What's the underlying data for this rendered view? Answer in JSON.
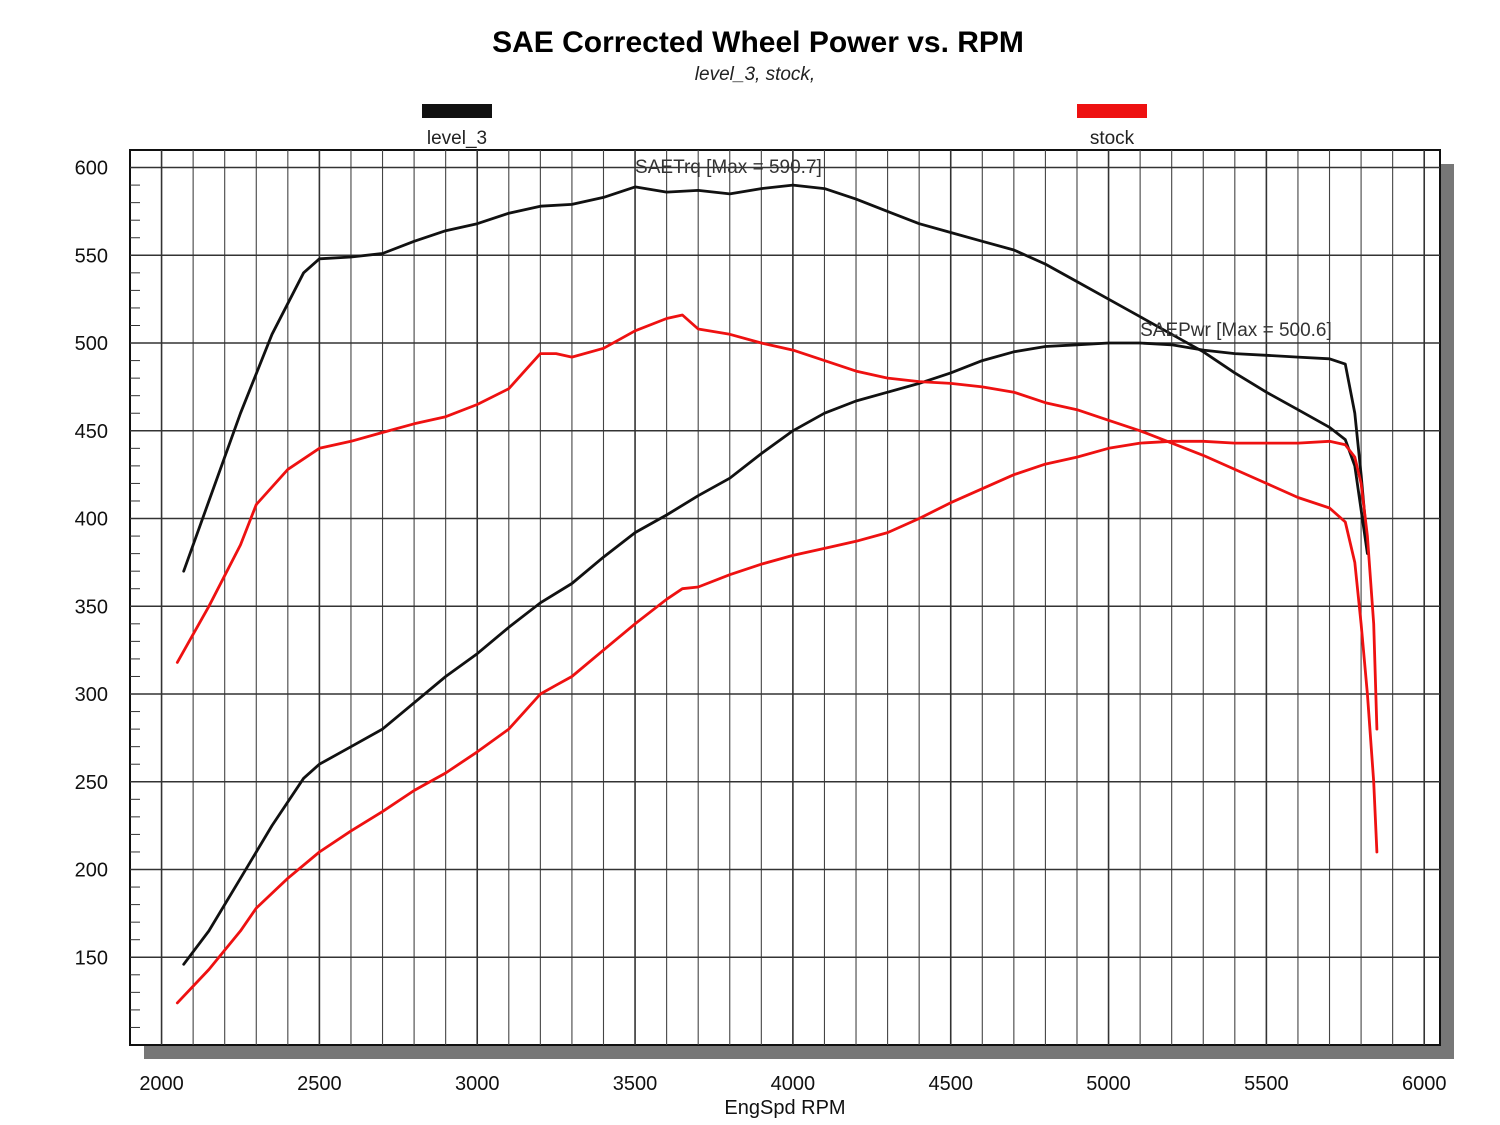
{
  "chart_data": {
    "type": "line",
    "title": "SAE Corrected Wheel Power vs. RPM",
    "subtitle": "level_3, stock,",
    "xlabel": "EngSpd RPM",
    "ylabel": "",
    "xlim": [
      1900,
      6050
    ],
    "ylim": [
      100,
      610
    ],
    "x_ticks": [
      2000,
      2500,
      3000,
      3500,
      4000,
      4500,
      5000,
      5500,
      6000
    ],
    "y_ticks": [
      150,
      200,
      250,
      300,
      350,
      400,
      450,
      500,
      550,
      600
    ],
    "grid": true,
    "legend": [
      {
        "name": "level_3",
        "color": "#111111"
      },
      {
        "name": "stock",
        "color": "#ee1111"
      }
    ],
    "annotations": [
      {
        "text": "SAETrq [Max = 590.7]",
        "x": 3500,
        "y": 597
      },
      {
        "text": "SAEPwr [Max = 500.6]",
        "x": 5100,
        "y": 504
      }
    ],
    "series": [
      {
        "name": "level_3",
        "measure": "SAETrq",
        "color": "#111111",
        "x": [
          2070,
          2150,
          2250,
          2350,
          2450,
          2500,
          2600,
          2700,
          2800,
          2900,
          3000,
          3100,
          3200,
          3300,
          3400,
          3500,
          3600,
          3700,
          3800,
          3900,
          4000,
          4100,
          4200,
          4300,
          4400,
          4500,
          4600,
          4700,
          4800,
          4900,
          5000,
          5100,
          5200,
          5300,
          5400,
          5500,
          5600,
          5700,
          5750,
          5780,
          5800,
          5820
        ],
        "y": [
          370,
          410,
          460,
          505,
          540,
          548,
          549,
          551,
          558,
          564,
          568,
          574,
          578,
          579,
          583,
          589,
          586,
          587,
          585,
          588,
          590,
          588,
          582,
          575,
          568,
          563,
          558,
          553,
          545,
          535,
          525,
          515,
          505,
          495,
          483,
          472,
          462,
          452,
          445,
          430,
          405,
          380
        ]
      },
      {
        "name": "level_3",
        "measure": "SAEPwr",
        "color": "#111111",
        "x": [
          2070,
          2150,
          2250,
          2350,
          2450,
          2500,
          2600,
          2700,
          2800,
          2900,
          3000,
          3100,
          3200,
          3300,
          3400,
          3500,
          3600,
          3700,
          3800,
          3900,
          4000,
          4100,
          4200,
          4300,
          4400,
          4500,
          4600,
          4700,
          4800,
          4900,
          5000,
          5100,
          5200,
          5300,
          5400,
          5500,
          5600,
          5700,
          5750,
          5780,
          5800,
          5820
        ],
        "y": [
          146,
          165,
          195,
          225,
          252,
          260,
          270,
          280,
          295,
          310,
          323,
          338,
          352,
          363,
          378,
          392,
          402,
          413,
          423,
          437,
          450,
          460,
          467,
          472,
          477,
          483,
          490,
          495,
          498,
          499,
          500,
          500,
          499,
          496,
          494,
          493,
          492,
          491,
          488,
          460,
          425,
          385
        ]
      },
      {
        "name": "stock",
        "measure": "SAETrq",
        "color": "#ee1111",
        "x": [
          2050,
          2150,
          2250,
          2300,
          2400,
          2500,
          2600,
          2700,
          2800,
          2900,
          3000,
          3100,
          3150,
          3200,
          3250,
          3300,
          3400,
          3500,
          3600,
          3650,
          3700,
          3800,
          3900,
          4000,
          4100,
          4200,
          4300,
          4400,
          4500,
          4600,
          4700,
          4800,
          4900,
          5000,
          5100,
          5200,
          5300,
          5400,
          5500,
          5600,
          5700,
          5750,
          5780,
          5800,
          5820,
          5840,
          5850
        ],
        "y": [
          318,
          350,
          385,
          408,
          428,
          440,
          444,
          449,
          454,
          458,
          465,
          474,
          484,
          494,
          494,
          492,
          497,
          507,
          514,
          516,
          508,
          505,
          500,
          496,
          490,
          484,
          480,
          478,
          477,
          475,
          472,
          466,
          462,
          456,
          450,
          443,
          436,
          428,
          420,
          412,
          406,
          398,
          375,
          340,
          300,
          250,
          210
        ]
      },
      {
        "name": "stock",
        "measure": "SAEPwr",
        "color": "#ee1111",
        "x": [
          2050,
          2150,
          2250,
          2300,
          2400,
          2500,
          2600,
          2700,
          2800,
          2900,
          3000,
          3100,
          3150,
          3200,
          3250,
          3300,
          3400,
          3500,
          3600,
          3650,
          3700,
          3800,
          3900,
          4000,
          4100,
          4200,
          4300,
          4400,
          4500,
          4600,
          4700,
          4800,
          4900,
          5000,
          5100,
          5200,
          5300,
          5400,
          5500,
          5600,
          5700,
          5750,
          5780,
          5800,
          5820,
          5840,
          5850
        ],
        "y": [
          124,
          143,
          165,
          178,
          195,
          210,
          222,
          233,
          245,
          255,
          267,
          280,
          290,
          300,
          305,
          310,
          325,
          340,
          354,
          360,
          361,
          368,
          374,
          379,
          383,
          387,
          392,
          400,
          409,
          417,
          425,
          431,
          435,
          440,
          443,
          444,
          444,
          443,
          443,
          443,
          444,
          442,
          435,
          420,
          390,
          340,
          280
        ]
      }
    ]
  }
}
